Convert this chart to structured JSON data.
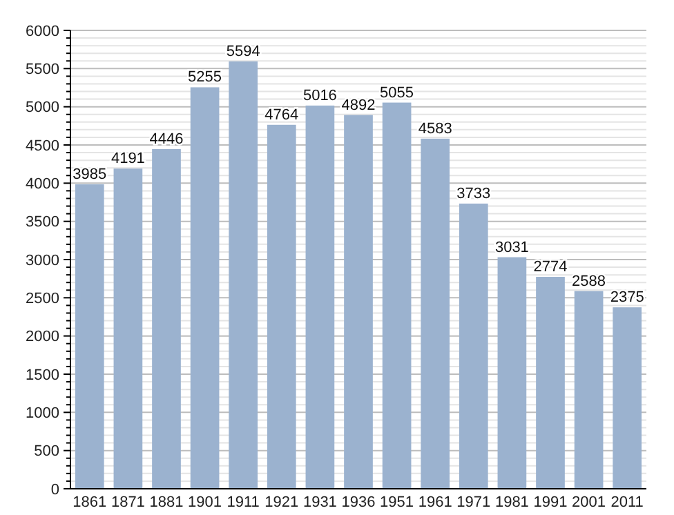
{
  "chart_data": {
    "type": "bar",
    "categories": [
      "1861",
      "1871",
      "1881",
      "1901",
      "1911",
      "1921",
      "1931",
      "1936",
      "1951",
      "1961",
      "1971",
      "1981",
      "1991",
      "2001",
      "2011"
    ],
    "values": [
      3985,
      4191,
      4446,
      5255,
      5594,
      4764,
      5016,
      4892,
      5055,
      4583,
      3733,
      3031,
      2774,
      2588,
      2375
    ],
    "color": "#9bb2cf",
    "data_labels": true,
    "grid": "y",
    "ylim": [
      0,
      6000
    ],
    "yticks": [
      0,
      {
        "value": 100,
        "label": null
      },
      {
        "value": 200,
        "label": null
      },
      {
        "value": 300,
        "label": null
      },
      {
        "value": 400,
        "label": null
      },
      500,
      {
        "value": 600,
        "label": null
      },
      {
        "value": 700,
        "label": null
      },
      {
        "value": 800,
        "label": null
      },
      {
        "value": 900,
        "label": null
      },
      1000,
      {
        "value": 1100,
        "label": null
      },
      {
        "value": 1200,
        "label": null
      },
      {
        "value": 1300,
        "label": null
      },
      {
        "value": 1400,
        "label": null
      },
      1500,
      {
        "value": 1600,
        "label": null
      },
      {
        "value": 1700,
        "label": null
      },
      {
        "value": 1800,
        "label": null
      },
      {
        "value": 1900,
        "label": null
      },
      2000,
      {
        "value": 2100,
        "label": null
      },
      {
        "value": 2200,
        "label": null
      },
      {
        "value": 2300,
        "label": null
      },
      {
        "value": 2400,
        "label": null
      },
      2500,
      {
        "value": 2600,
        "label": null
      },
      {
        "value": 2700,
        "label": null
      },
      {
        "value": 2800,
        "label": null
      },
      {
        "value": 2900,
        "label": null
      },
      3000,
      {
        "value": 3100,
        "label": null
      },
      {
        "value": 3200,
        "label": null
      },
      {
        "value": 3300,
        "label": null
      },
      {
        "value": 3400,
        "label": null
      },
      3500,
      {
        "value": 3600,
        "label": null
      },
      {
        "value": 3700,
        "label": null
      },
      {
        "value": 3800,
        "label": null
      },
      {
        "value": 3900,
        "label": null
      },
      4000,
      {
        "value": 4100,
        "label": null
      },
      {
        "value": 4200,
        "label": null
      },
      {
        "value": 4300,
        "label": null
      },
      {
        "value": 4400,
        "label": null
      },
      4500,
      {
        "value": 4600,
        "label": null
      },
      {
        "value": 4700,
        "label": null
      },
      {
        "value": 4800,
        "label": null
      },
      {
        "value": 4900,
        "label": null
      },
      5000,
      {
        "value": 5100,
        "label": null
      },
      {
        "value": 5200,
        "label": null
      },
      {
        "value": 5300,
        "label": null
      },
      {
        "value": 5400,
        "label": null
      },
      5500,
      {
        "value": 5600,
        "label": null
      },
      {
        "value": 5700,
        "label": null
      },
      {
        "value": 5800,
        "label": null
      },
      {
        "value": 5900,
        "label": null
      },
      6000
    ]
  }
}
